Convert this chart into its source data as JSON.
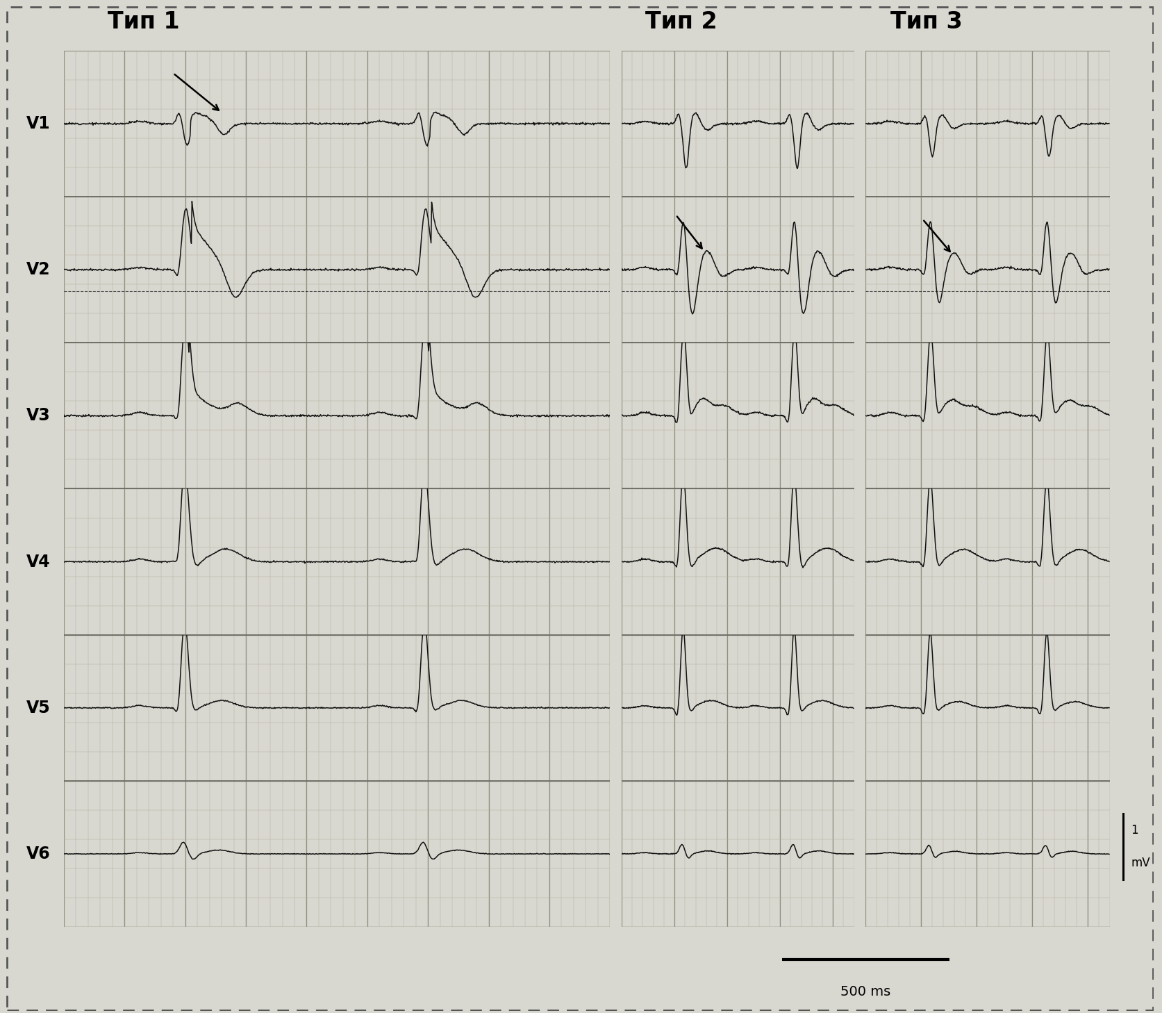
{
  "title_type1": "Тип 1",
  "title_type2": "Тип 2",
  "title_type3": "Тип 3",
  "leads": [
    "V1",
    "V2",
    "V3",
    "V4",
    "V5",
    "V6"
  ],
  "scale_label_top": "1",
  "scale_label_bot": "mV",
  "time_label": "500 ms",
  "bg_color": "#d8d8d0",
  "ecg_bg": "#e8e8de",
  "grid_minor_color": "#c0b8b0",
  "grid_major_color": "#a09890",
  "line_color": "#111111",
  "border_color": "#555555",
  "title_fontsize": 24,
  "lead_fontsize": 17
}
